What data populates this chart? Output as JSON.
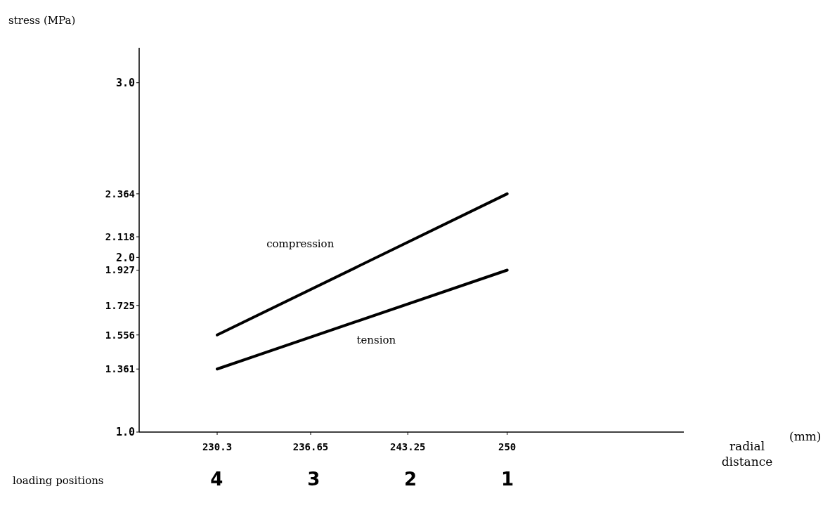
{
  "chart_data": {
    "type": "line",
    "ylabel": "stress (MPa)",
    "xlabel": "radial distance",
    "x2label": "loading positions",
    "annotations": [
      "(mm)"
    ],
    "x": [
      230.3,
      250
    ],
    "series": [
      {
        "name": "compression",
        "color": "#000000",
        "values": [
          1.556,
          2.364
        ]
      },
      {
        "name": "tension",
        "color": "#000000",
        "values": [
          1.361,
          1.927
        ]
      }
    ],
    "xlim": [
      225,
      262
    ],
    "xticks": [
      230.3,
      236.65,
      243.25,
      250
    ],
    "x2lim": [
      4.8,
      -0.82
    ],
    "x2ticks": [
      4,
      3,
      2,
      1
    ],
    "ylim": [
      1.0,
      3.2
    ],
    "yticks": [
      {
        "value": 1,
        "label": "1.0"
      },
      1.361,
      1.556,
      1.725,
      1.927,
      {
        "value": 2,
        "label": "2.0"
      },
      2.118,
      2.364,
      {
        "value": 3,
        "label": "3.0"
      }
    ]
  }
}
